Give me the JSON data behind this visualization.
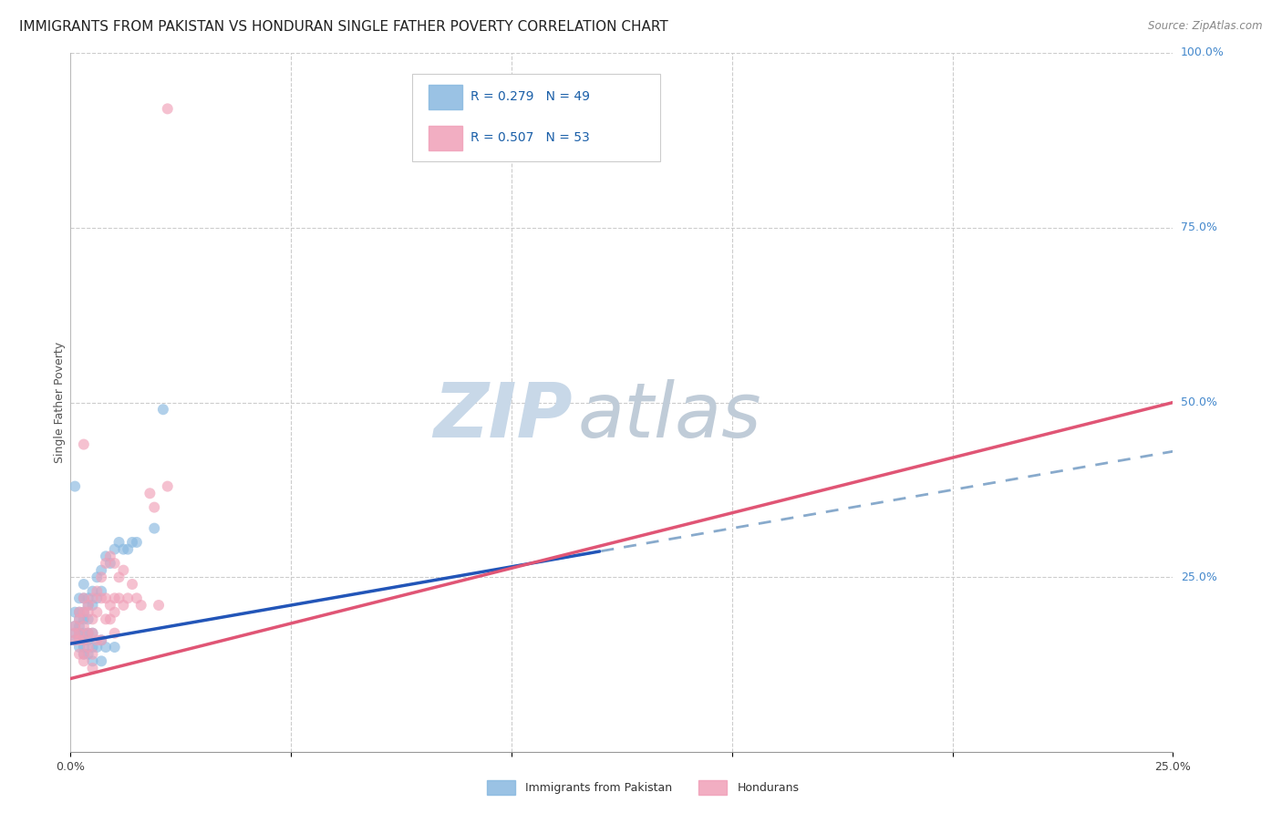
{
  "title": "IMMIGRANTS FROM PAKISTAN VS HONDURAN SINGLE FATHER POVERTY CORRELATION CHART",
  "source": "Source: ZipAtlas.com",
  "ylabel": "Single Father Poverty",
  "xlim": [
    0,
    0.25
  ],
  "ylim": [
    0,
    1.0
  ],
  "xtick_positions": [
    0,
    0.05,
    0.1,
    0.15,
    0.2,
    0.25
  ],
  "xtick_labels": [
    "0.0%",
    "",
    "",
    "",
    "",
    "25.0%"
  ],
  "ytick_vals_right": [
    1.0,
    0.75,
    0.5,
    0.25
  ],
  "ytick_labels_right": [
    "100.0%",
    "75.0%",
    "50.0%",
    "25.0%"
  ],
  "legend_entries": [
    {
      "label": "R = 0.279   N = 49",
      "color": "#aac8e8"
    },
    {
      "label": "R = 0.507   N = 53",
      "color": "#f4a8b8"
    }
  ],
  "bottom_legend": [
    {
      "label": "Immigrants from Pakistan",
      "color": "#aac8e8"
    },
    {
      "label": "Hondurans",
      "color": "#f4a8b8"
    }
  ],
  "pakistan_scatter": [
    [
      0.001,
      0.2
    ],
    [
      0.001,
      0.18
    ],
    [
      0.001,
      0.17
    ],
    [
      0.001,
      0.16
    ],
    [
      0.002,
      0.22
    ],
    [
      0.002,
      0.2
    ],
    [
      0.002,
      0.19
    ],
    [
      0.002,
      0.18
    ],
    [
      0.002,
      0.17
    ],
    [
      0.002,
      0.15
    ],
    [
      0.003,
      0.24
    ],
    [
      0.003,
      0.22
    ],
    [
      0.003,
      0.2
    ],
    [
      0.003,
      0.19
    ],
    [
      0.003,
      0.17
    ],
    [
      0.003,
      0.16
    ],
    [
      0.003,
      0.15
    ],
    [
      0.003,
      0.14
    ],
    [
      0.004,
      0.22
    ],
    [
      0.004,
      0.21
    ],
    [
      0.004,
      0.19
    ],
    [
      0.004,
      0.17
    ],
    [
      0.004,
      0.16
    ],
    [
      0.004,
      0.14
    ],
    [
      0.005,
      0.23
    ],
    [
      0.005,
      0.21
    ],
    [
      0.005,
      0.17
    ],
    [
      0.005,
      0.15
    ],
    [
      0.005,
      0.13
    ],
    [
      0.006,
      0.25
    ],
    [
      0.006,
      0.22
    ],
    [
      0.006,
      0.15
    ],
    [
      0.007,
      0.26
    ],
    [
      0.007,
      0.23
    ],
    [
      0.007,
      0.16
    ],
    [
      0.007,
      0.13
    ],
    [
      0.008,
      0.28
    ],
    [
      0.008,
      0.15
    ],
    [
      0.009,
      0.27
    ],
    [
      0.01,
      0.29
    ],
    [
      0.01,
      0.15
    ],
    [
      0.011,
      0.3
    ],
    [
      0.012,
      0.29
    ],
    [
      0.013,
      0.29
    ],
    [
      0.001,
      0.38
    ],
    [
      0.014,
      0.3
    ],
    [
      0.015,
      0.3
    ],
    [
      0.019,
      0.32
    ],
    [
      0.021,
      0.49
    ]
  ],
  "honduran_scatter": [
    [
      0.001,
      0.18
    ],
    [
      0.001,
      0.17
    ],
    [
      0.001,
      0.16
    ],
    [
      0.002,
      0.2
    ],
    [
      0.002,
      0.19
    ],
    [
      0.002,
      0.17
    ],
    [
      0.002,
      0.16
    ],
    [
      0.002,
      0.14
    ],
    [
      0.003,
      0.22
    ],
    [
      0.003,
      0.2
    ],
    [
      0.003,
      0.18
    ],
    [
      0.003,
      0.16
    ],
    [
      0.003,
      0.14
    ],
    [
      0.003,
      0.13
    ],
    [
      0.003,
      0.44
    ],
    [
      0.004,
      0.21
    ],
    [
      0.004,
      0.2
    ],
    [
      0.004,
      0.17
    ],
    [
      0.004,
      0.15
    ],
    [
      0.005,
      0.22
    ],
    [
      0.005,
      0.19
    ],
    [
      0.005,
      0.17
    ],
    [
      0.005,
      0.14
    ],
    [
      0.005,
      0.12
    ],
    [
      0.006,
      0.23
    ],
    [
      0.006,
      0.2
    ],
    [
      0.006,
      0.16
    ],
    [
      0.007,
      0.25
    ],
    [
      0.007,
      0.22
    ],
    [
      0.007,
      0.16
    ],
    [
      0.008,
      0.27
    ],
    [
      0.008,
      0.22
    ],
    [
      0.008,
      0.19
    ],
    [
      0.009,
      0.28
    ],
    [
      0.009,
      0.21
    ],
    [
      0.009,
      0.19
    ],
    [
      0.01,
      0.27
    ],
    [
      0.01,
      0.22
    ],
    [
      0.01,
      0.2
    ],
    [
      0.01,
      0.17
    ],
    [
      0.011,
      0.25
    ],
    [
      0.011,
      0.22
    ],
    [
      0.012,
      0.26
    ],
    [
      0.012,
      0.21
    ],
    [
      0.013,
      0.22
    ],
    [
      0.014,
      0.24
    ],
    [
      0.015,
      0.22
    ],
    [
      0.016,
      0.21
    ],
    [
      0.018,
      0.37
    ],
    [
      0.019,
      0.35
    ],
    [
      0.02,
      0.21
    ],
    [
      0.022,
      0.38
    ],
    [
      0.022,
      0.92
    ]
  ],
  "pakistan_line_solid": {
    "x0": 0.0,
    "x1": 0.12,
    "intercept": 0.155,
    "slope": 1.1
  },
  "pakistan_line_dashed": {
    "x0": 0.1,
    "x1": 0.25,
    "intercept": 0.155,
    "slope": 1.1
  },
  "honduran_line_solid": {
    "x0": 0.0,
    "x1": 0.25,
    "intercept": 0.105,
    "slope": 1.58
  },
  "pakistan_line_color": "#2255b8",
  "pakistan_dashed_color": "#88aacc",
  "honduran_line_color": "#e05575",
  "scatter_blue": "#88b8e0",
  "scatter_pink": "#f0a0b8",
  "scatter_alpha": 0.65,
  "marker_size": 75,
  "background_color": "#ffffff",
  "grid_color": "#cccccc",
  "watermark_zip": "ZIP",
  "watermark_atlas": "atlas",
  "watermark_color_zip": "#c8d8e8",
  "watermark_color_atlas": "#c0ccd8",
  "title_fontsize": 11,
  "axis_fontsize": 9,
  "legend_fontsize": 10
}
